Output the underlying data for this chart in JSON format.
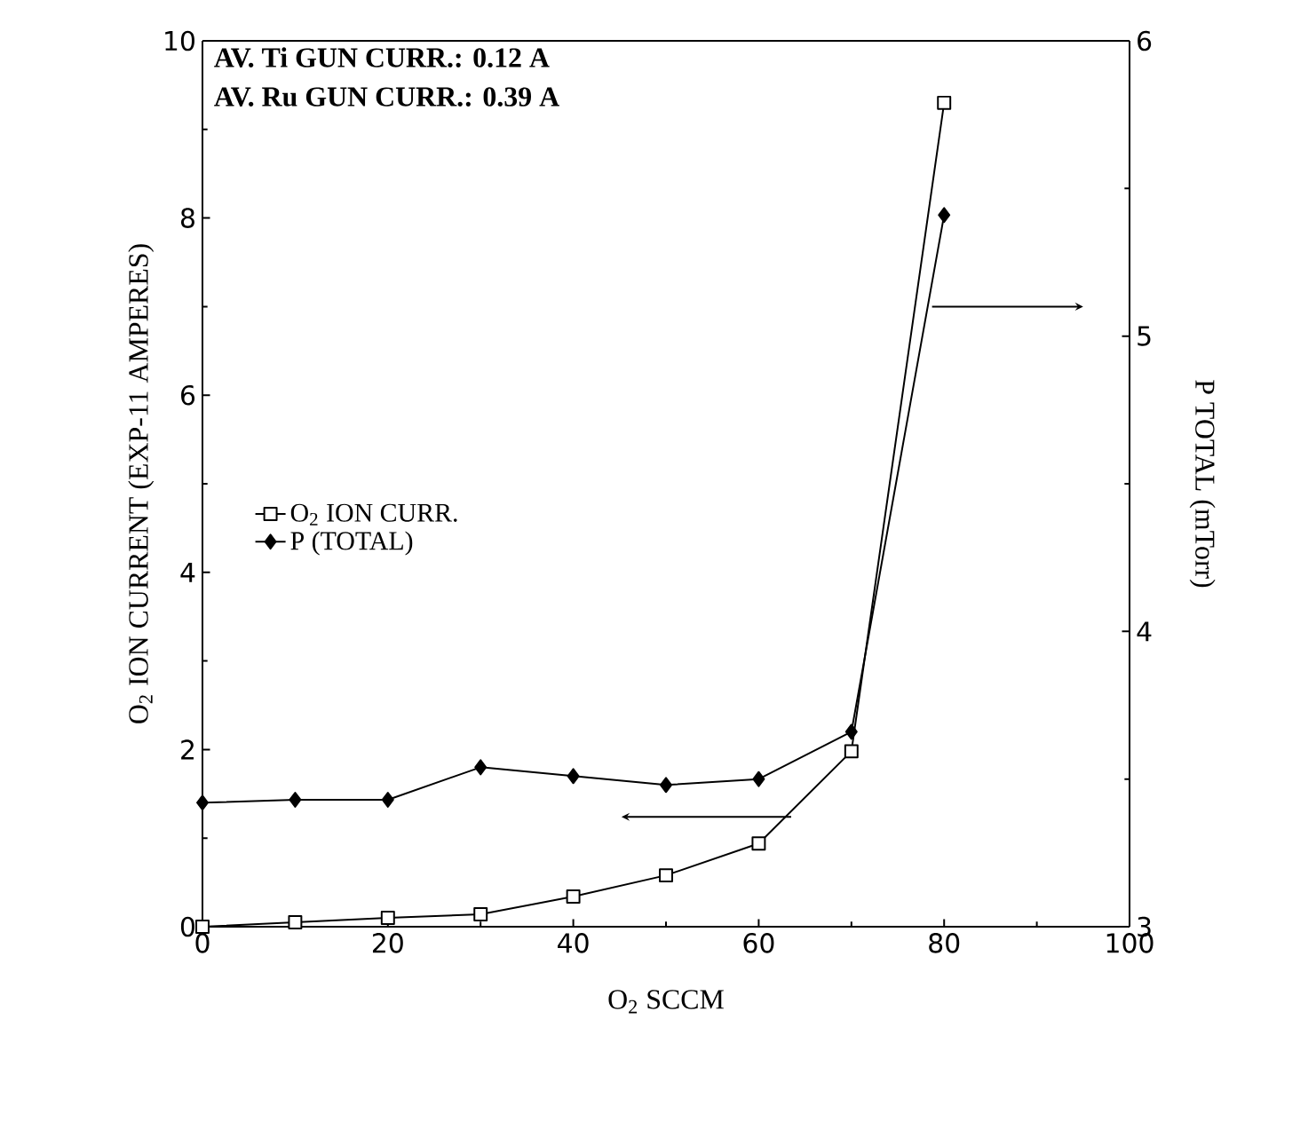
{
  "chart_data": {
    "type": "line",
    "xlabel": "O$_{2}$ SCCM",
    "ylabel": "O$_{2}$ ION CURRENT (EXP-11 AMPERES)",
    "y2label": "P TOTAL (mTorr)",
    "annotations": [
      "AV. Ti GUN CURR.: 0.12 A",
      "AV. Ru GUN CURR.: 0.39 A"
    ],
    "x": [
      0,
      10,
      20,
      30,
      40,
      50,
      60,
      70,
      80
    ],
    "series": [
      {
        "name": "O$_{2}$ ION CURR.",
        "color": "#000000",
        "marker": "square",
        "values": [
          0.0,
          0.05,
          0.1,
          0.14,
          0.34,
          0.58,
          0.94,
          1.98,
          9.3
        ]
      },
      {
        "name": "P (TOTAL)",
        "color": "#000000",
        "marker": "diamond",
        "axis": "y2",
        "values": [
          3.42,
          3.43,
          3.43,
          3.54,
          3.51,
          3.48,
          3.5,
          3.66,
          5.41
        ]
      }
    ],
    "xlim": [
      0,
      100
    ],
    "xticks": [
      0,
      20,
      40,
      60,
      80,
      100
    ],
    "ylim": [
      0,
      10
    ],
    "yticks": [
      0,
      2,
      4,
      6,
      8,
      10
    ],
    "y2lim": [
      3,
      6
    ],
    "y2ticks": [
      3,
      4,
      5,
      6
    ],
    "legend": "left",
    "grid": false
  }
}
